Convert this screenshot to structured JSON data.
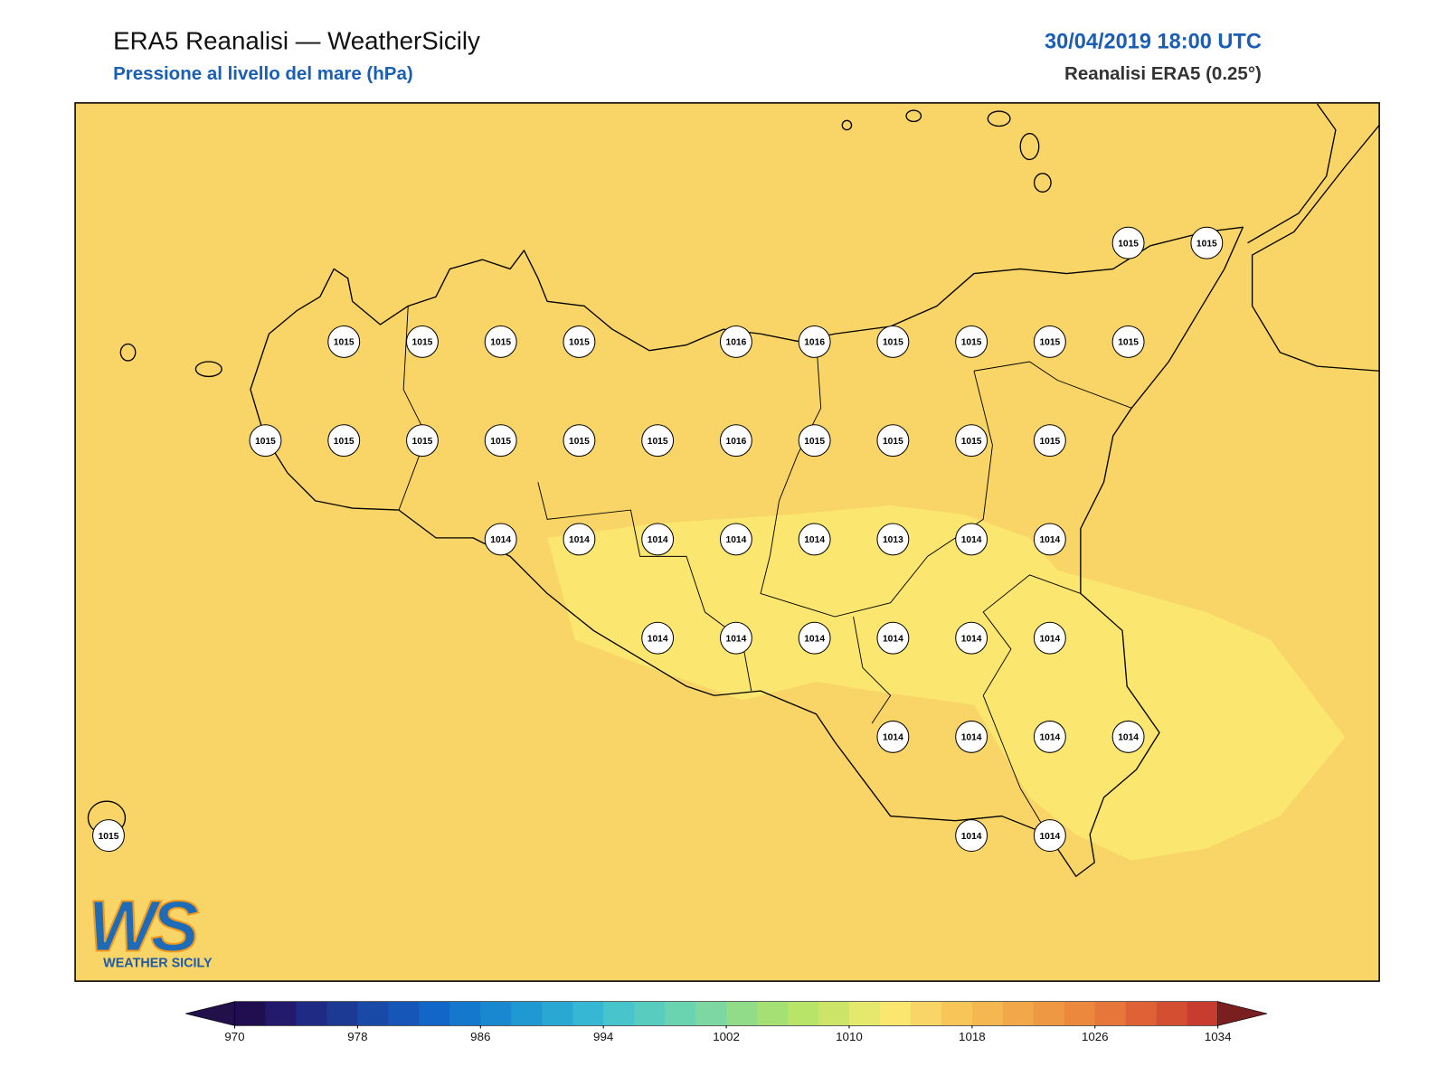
{
  "header": {
    "title": "ERA5 Reanalisi — WeatherSicily",
    "subtitle": "Pressione al livello del mare (hPa)",
    "datetime": "30/04/2019 18:00 UTC",
    "source": "Reanalisi ERA5 (0.25°)"
  },
  "stations": [
    [
      null,
      null,
      null,
      null,
      null,
      null,
      null,
      null,
      null,
      null,
      null,
      null,
      null,
      1015,
      1015
    ],
    [
      null,
      null,
      null,
      1015,
      1015,
      1015,
      1015,
      null,
      1016,
      1016,
      1015,
      1015,
      1015,
      1015,
      null
    ],
    [
      null,
      null,
      1015,
      1015,
      1015,
      1015,
      1015,
      1015,
      1016,
      1015,
      1015,
      1015,
      1015,
      null,
      null
    ],
    [
      null,
      null,
      null,
      null,
      null,
      1014,
      1014,
      1014,
      1014,
      1014,
      1013,
      1014,
      1014,
      null,
      null
    ],
    [
      null,
      null,
      null,
      null,
      null,
      null,
      null,
      1014,
      1014,
      1014,
      1014,
      1014,
      1014,
      null,
      null
    ],
    [
      null,
      null,
      null,
      null,
      null,
      null,
      null,
      null,
      null,
      null,
      1014,
      1014,
      1014,
      1014,
      null
    ],
    [
      1015,
      null,
      null,
      null,
      null,
      null,
      null,
      null,
      null,
      null,
      null,
      1014,
      1014,
      null,
      null
    ]
  ],
  "colorbar": {
    "ticks": [
      970,
      978,
      986,
      994,
      1002,
      1010,
      1018,
      1026,
      1034
    ],
    "colors": [
      "#1f0f50",
      "#231a6e",
      "#1f2a84",
      "#1c3a94",
      "#1a4aa8",
      "#1656b8",
      "#1266c8",
      "#1478cc",
      "#1a88d0",
      "#2098d2",
      "#2aa8d4",
      "#36b8d4",
      "#48c4cc",
      "#58ccbe",
      "#6ad4b0",
      "#7cd8a0",
      "#90dc88",
      "#a4e074",
      "#b8e468",
      "#cce468",
      "#e4e86c",
      "#fbe670",
      "#f9d466",
      "#f8c658",
      "#f5b850",
      "#f2a84a",
      "#ef9844",
      "#ec883e",
      "#e6763a",
      "#de6236",
      "#d44e32",
      "#c83c30"
    ],
    "under": "#22104a",
    "over": "#7a1f1f"
  },
  "logo": {
    "mark": "WS",
    "name": "WEATHER SICILY"
  }
}
